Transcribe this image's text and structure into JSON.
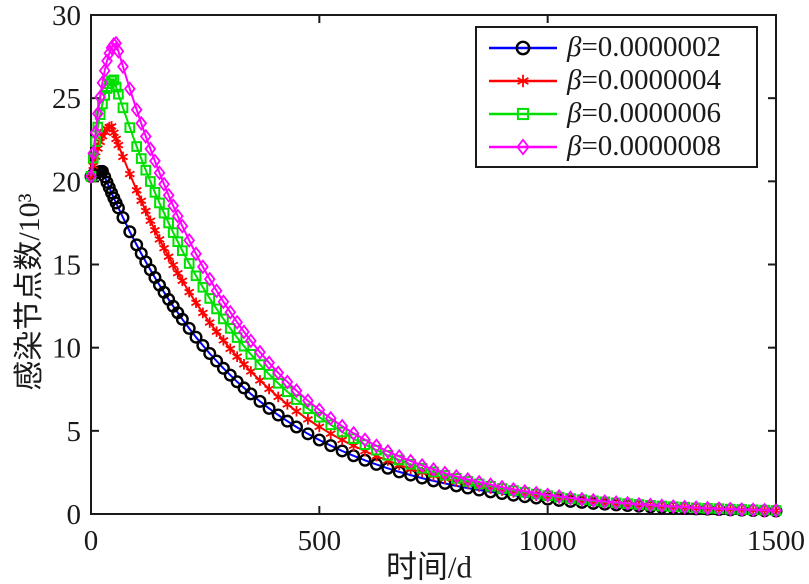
{
  "figure": {
    "background": "#ffffff",
    "axis_color": "#1a1a1a"
  },
  "chart_data": {
    "type": "line",
    "title": "",
    "xlabel": "时间/d",
    "ylabel": "感染节点数/10³",
    "xlim": [
      0,
      1500
    ],
    "ylim": [
      0,
      30
    ],
    "xticks": [
      "0",
      "500",
      "1000",
      "1500"
    ],
    "xtick_values": [
      0,
      500,
      1000,
      1500
    ],
    "yticks": [
      "0",
      "5",
      "10",
      "15",
      "20",
      "25",
      "30"
    ],
    "ytick_values": [
      0,
      5,
      10,
      15,
      20,
      25,
      30
    ],
    "grid": false,
    "legend_position": "top-right",
    "x": [
      0,
      5,
      10,
      15,
      20,
      25,
      30,
      35,
      40,
      45,
      50,
      55,
      60,
      70,
      85,
      100,
      110,
      120,
      130,
      140,
      150,
      160,
      170,
      180,
      190,
      200,
      215,
      230,
      245,
      260,
      275,
      290,
      305,
      320,
      335,
      350,
      370,
      390,
      410,
      430,
      450,
      475,
      500,
      525,
      550,
      575,
      600,
      625,
      650,
      675,
      700,
      725,
      750,
      775,
      800,
      825,
      850,
      875,
      900,
      925,
      950,
      975,
      1000,
      1025,
      1050,
      1075,
      1100,
      1125,
      1150,
      1175,
      1200,
      1225,
      1250,
      1275,
      1300,
      1325,
      1350,
      1375,
      1400,
      1425,
      1450,
      1475,
      1500
    ],
    "series": [
      {
        "label": "β=0.0000002",
        "line_color": "#0000ff",
        "marker": "circle",
        "marker_color": "#000000",
        "peak": {
          "t": 25,
          "value": 20.6
        },
        "values": [
          20.3,
          20.41,
          20.49,
          20.55,
          20.59,
          20.6,
          20.27,
          19.94,
          19.63,
          19.31,
          19.0,
          18.7,
          18.4,
          17.82,
          16.97,
          16.18,
          15.66,
          15.16,
          14.68,
          14.22,
          13.76,
          13.33,
          12.9,
          12.49,
          12.1,
          11.71,
          11.16,
          10.63,
          10.13,
          9.65,
          9.2,
          8.76,
          8.35,
          7.95,
          7.58,
          7.22,
          6.77,
          6.35,
          5.95,
          5.58,
          5.23,
          4.82,
          4.45,
          4.11,
          3.79,
          3.5,
          3.23,
          2.98,
          2.75,
          2.53,
          2.34,
          2.16,
          1.99,
          1.84,
          1.69,
          1.56,
          1.44,
          1.33,
          1.23,
          1.13,
          1.04,
          0.96,
          0.89,
          0.82,
          0.76,
          0.7,
          0.64,
          0.59,
          0.55,
          0.51,
          0.47,
          0.43,
          0.4,
          0.37,
          0.34,
          0.31,
          0.29,
          0.27,
          0.25,
          0.23,
          0.21,
          0.19,
          0.18
        ]
      },
      {
        "label": "β=0.0000004",
        "line_color": "#ff0000",
        "marker": "asterisk",
        "marker_color": "#ff0000",
        "peak": {
          "t": 45,
          "value": 23.3
        },
        "values": [
          20.3,
          20.93,
          21.49,
          21.97,
          22.37,
          22.71,
          22.97,
          23.15,
          23.26,
          23.3,
          22.92,
          22.55,
          22.18,
          21.47,
          20.44,
          19.46,
          18.83,
          18.22,
          17.63,
          17.06,
          16.51,
          15.98,
          15.47,
          14.97,
          14.48,
          14.02,
          13.34,
          12.7,
          12.09,
          11.51,
          10.96,
          10.44,
          9.93,
          9.46,
          9.0,
          8.57,
          8.03,
          7.52,
          7.04,
          6.59,
          6.18,
          5.69,
          5.24,
          4.83,
          4.45,
          4.1,
          3.78,
          3.48,
          3.21,
          2.95,
          2.72,
          2.51,
          2.31,
          2.13,
          1.96,
          1.81,
          1.66,
          1.53,
          1.41,
          1.3,
          1.2,
          1.1,
          1.02,
          0.94,
          0.86,
          0.79,
          0.73,
          0.67,
          0.62,
          0.57,
          0.53,
          0.49,
          0.45,
          0.41,
          0.38,
          0.35,
          0.32,
          0.3,
          0.27,
          0.25,
          0.23,
          0.21,
          0.2
        ]
      },
      {
        "label": "β=0.0000006",
        "line_color": "#00df00",
        "marker": "square",
        "marker_color": "#00df00",
        "peak": {
          "t": 50,
          "value": 26.1
        },
        "values": [
          20.3,
          21.4,
          22.39,
          23.26,
          24.01,
          24.65,
          25.17,
          25.58,
          25.87,
          26.04,
          26.1,
          25.67,
          25.24,
          24.42,
          23.23,
          22.09,
          21.37,
          20.67,
          19.99,
          19.34,
          18.7,
          18.09,
          17.5,
          16.92,
          16.37,
          15.83,
          15.06,
          14.32,
          13.63,
          12.96,
          12.33,
          11.73,
          11.16,
          10.61,
          10.09,
          9.6,
          8.98,
          8.4,
          7.86,
          7.35,
          6.88,
          6.33,
          5.82,
          5.36,
          4.93,
          4.53,
          4.17,
          3.84,
          3.53,
          3.25,
          2.99,
          2.75,
          2.53,
          2.33,
          2.14,
          1.97,
          1.81,
          1.67,
          1.53,
          1.41,
          1.3,
          1.2,
          1.1,
          1.01,
          0.93,
          0.86,
          0.79,
          0.73,
          0.67,
          0.62,
          0.57,
          0.52,
          0.48,
          0.44,
          0.41,
          0.37,
          0.34,
          0.32,
          0.29,
          0.27,
          0.25,
          0.23,
          0.21
        ]
      },
      {
        "label": "β=0.0000008",
        "line_color": "#ff00ff",
        "marker": "diamond",
        "marker_color": "#ff00ff",
        "peak": {
          "t": 55,
          "value": 28.3
        },
        "values": [
          20.3,
          21.69,
          22.94,
          24.07,
          25.06,
          25.92,
          26.65,
          27.24,
          27.7,
          28.04,
          28.23,
          28.3,
          27.82,
          26.9,
          25.56,
          24.3,
          23.49,
          22.7,
          21.95,
          21.22,
          20.51,
          19.83,
          19.16,
          18.53,
          17.91,
          17.31,
          16.45,
          15.64,
          14.86,
          14.12,
          13.42,
          12.76,
          12.13,
          11.53,
          10.95,
          10.41,
          9.73,
          9.09,
          8.49,
          7.94,
          7.42,
          6.81,
          6.26,
          5.75,
          5.28,
          4.85,
          4.46,
          4.1,
          3.76,
          3.46,
          3.18,
          2.92,
          2.68,
          2.46,
          2.26,
          2.08,
          1.91,
          1.76,
          1.61,
          1.48,
          1.36,
          1.25,
          1.15,
          1.06,
          0.97,
          0.89,
          0.82,
          0.75,
          0.69,
          0.64,
          0.58,
          0.54,
          0.49,
          0.45,
          0.42,
          0.38,
          0.35,
          0.32,
          0.3,
          0.27,
          0.25,
          0.23,
          0.21
        ]
      }
    ]
  }
}
